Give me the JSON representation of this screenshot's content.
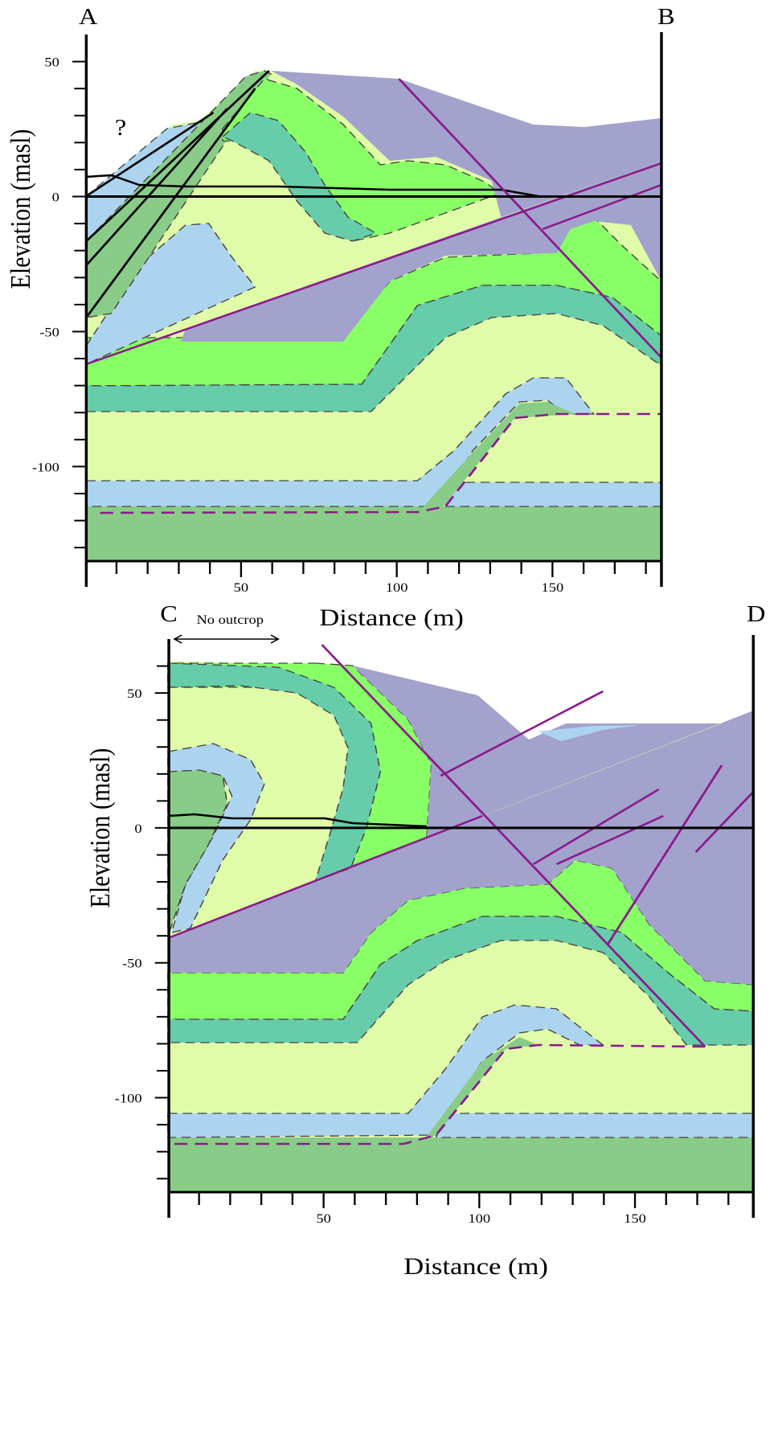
{
  "sections": [
    {
      "start_label": "A",
      "end_label": "B",
      "x_label": "Distance (m)",
      "y_label": "Elevation (masl)",
      "annotations": [
        "?"
      ],
      "xlim": [
        0,
        185
      ],
      "ylim": [
        -135,
        60
      ],
      "xticks": [
        50,
        100,
        150
      ],
      "xminorticks": [
        10,
        20,
        30,
        40,
        60,
        70,
        80,
        90,
        110,
        120,
        130,
        140,
        160,
        170,
        180
      ],
      "yticks": [
        50,
        0,
        -50,
        -100
      ],
      "yminorticks": [
        40,
        30,
        20,
        10,
        -10,
        -20,
        -30,
        -40,
        -60,
        -70,
        -80,
        -90,
        -110,
        -120,
        -130
      ]
    },
    {
      "start_label": "C",
      "end_label": "D",
      "x_label": "Distance (m)",
      "y_label": "Elevation (masl)",
      "annotations": [
        "No outcrop"
      ],
      "xlim": [
        0,
        188
      ],
      "ylim": [
        -135,
        70
      ],
      "xticks": [
        50,
        100,
        150
      ],
      "xminorticks": [
        10,
        20,
        30,
        40,
        60,
        70,
        80,
        90,
        110,
        120,
        130,
        140,
        160,
        170,
        180
      ],
      "yticks": [
        50,
        0,
        -50,
        -100
      ],
      "yminorticks": [
        60,
        40,
        30,
        20,
        10,
        -10,
        -20,
        -30,
        -40,
        -60,
        -70,
        -80,
        -90,
        -110,
        -120,
        -130
      ]
    }
  ]
}
